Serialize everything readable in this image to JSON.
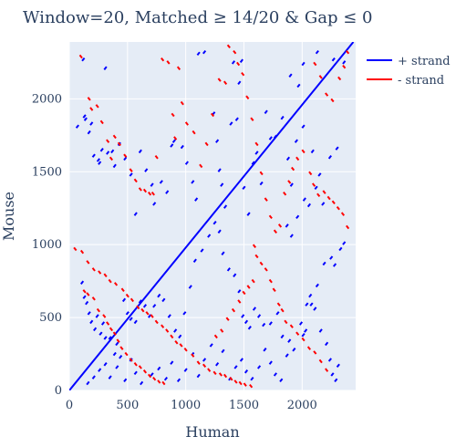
{
  "chart_data": {
    "type": "scatter",
    "title": "Window=20, Matched ≥ 14/20 & Gap ≤ 0",
    "xlabel": "Human",
    "ylabel": "Mouse",
    "xlim": [
      0,
      2460
    ],
    "ylim": [
      0,
      2390
    ],
    "xticks": [
      0,
      500,
      1000,
      1500,
      2000
    ],
    "yticks": [
      0,
      500,
      1000,
      1500,
      2000
    ],
    "grid": true,
    "legend_position": "top-right",
    "diagonal": {
      "from": [
        0,
        0
      ],
      "to": [
        2440,
        2390
      ],
      "color": "#0000ff"
    },
    "segment_length": 20,
    "series": [
      {
        "name": "+ strand",
        "color": "#0000ff",
        "points": [
          [
            60,
            1800
          ],
          [
            110,
            2260
          ],
          [
            130,
            1850
          ],
          [
            180,
            1820
          ],
          [
            300,
            2200
          ],
          [
            250,
            1550
          ],
          [
            320,
            1620
          ],
          [
            360,
            1630
          ],
          [
            380,
            1530
          ],
          [
            120,
            1870
          ],
          [
            160,
            1760
          ],
          [
            200,
            1600
          ],
          [
            240,
            1570
          ],
          [
            270,
            1640
          ],
          [
            420,
            1680
          ],
          [
            470,
            1580
          ],
          [
            520,
            1470
          ],
          [
            560,
            1200
          ],
          [
            600,
            1630
          ],
          [
            650,
            1500
          ],
          [
            700,
            1400
          ],
          [
            720,
            1270
          ],
          [
            780,
            1420
          ],
          [
            830,
            1350
          ],
          [
            870,
            1670
          ],
          [
            890,
            1700
          ],
          [
            960,
            1660
          ],
          [
            1000,
            1550
          ],
          [
            1050,
            1420
          ],
          [
            1080,
            1300
          ],
          [
            1100,
            2300
          ],
          [
            1150,
            2310
          ],
          [
            1230,
            1890
          ],
          [
            1260,
            1700
          ],
          [
            1280,
            1500
          ],
          [
            1300,
            1400
          ],
          [
            1330,
            1250
          ],
          [
            1380,
            1820
          ],
          [
            1400,
            2240
          ],
          [
            1430,
            1850
          ],
          [
            1450,
            2100
          ],
          [
            1470,
            2250
          ],
          [
            1490,
            1380
          ],
          [
            1530,
            1200
          ],
          [
            1570,
            1550
          ],
          [
            1600,
            1620
          ],
          [
            1640,
            1410
          ],
          [
            1680,
            1900
          ],
          [
            1720,
            1720
          ],
          [
            1760,
            1730
          ],
          [
            1820,
            1860
          ],
          [
            1870,
            1580
          ],
          [
            1900,
            1400
          ],
          [
            1940,
            1700
          ],
          [
            2000,
            1800
          ],
          [
            2080,
            1630
          ],
          [
            2140,
            1470
          ],
          [
            2170,
            1270
          ],
          [
            2230,
            1590
          ],
          [
            2290,
            1650
          ],
          [
            2350,
            2240
          ],
          [
            2260,
            2260
          ],
          [
            2120,
            2310
          ],
          [
            2000,
            2230
          ],
          [
            1960,
            2080
          ],
          [
            1890,
            2150
          ],
          [
            100,
            730
          ],
          [
            120,
            630
          ],
          [
            140,
            590
          ],
          [
            160,
            520
          ],
          [
            180,
            460
          ],
          [
            210,
            410
          ],
          [
            230,
            500
          ],
          [
            260,
            380
          ],
          [
            280,
            450
          ],
          [
            300,
            350
          ],
          [
            340,
            350
          ],
          [
            380,
            240
          ],
          [
            400,
            310
          ],
          [
            430,
            220
          ],
          [
            460,
            610
          ],
          [
            490,
            520
          ],
          [
            520,
            480
          ],
          [
            560,
            460
          ],
          [
            600,
            600
          ],
          [
            640,
            570
          ],
          [
            680,
            500
          ],
          [
            720,
            570
          ],
          [
            760,
            640
          ],
          [
            800,
            610
          ],
          [
            850,
            500
          ],
          [
            900,
            400
          ],
          [
            940,
            360
          ],
          [
            980,
            520
          ],
          [
            1030,
            700
          ],
          [
            1070,
            880
          ],
          [
            1130,
            950
          ],
          [
            1190,
            1050
          ],
          [
            1240,
            1140
          ],
          [
            1280,
            1080
          ],
          [
            1310,
            930
          ],
          [
            1360,
            820
          ],
          [
            1410,
            780
          ],
          [
            1450,
            670
          ],
          [
            1480,
            500
          ],
          [
            1510,
            460
          ],
          [
            1540,
            420
          ],
          [
            1580,
            550
          ],
          [
            1620,
            500
          ],
          [
            1660,
            440
          ],
          [
            1720,
            450
          ],
          [
            1780,
            520
          ],
          [
            1820,
            360
          ],
          [
            1880,
            330
          ],
          [
            1920,
            270
          ],
          [
            1980,
            450
          ],
          [
            2030,
            580
          ],
          [
            2060,
            640
          ],
          [
            2100,
            550
          ],
          [
            2150,
            400
          ],
          [
            2200,
            310
          ],
          [
            2230,
            200
          ],
          [
            2250,
            100
          ],
          [
            2280,
            60
          ],
          [
            2300,
            160
          ],
          [
            150,
            40
          ],
          [
            200,
            80
          ],
          [
            250,
            130
          ],
          [
            300,
            170
          ],
          [
            340,
            80
          ],
          [
            400,
            150
          ],
          [
            470,
            60
          ],
          [
            520,
            200
          ],
          [
            560,
            110
          ],
          [
            610,
            40
          ],
          [
            700,
            100
          ],
          [
            760,
            140
          ],
          [
            820,
            70
          ],
          [
            870,
            180
          ],
          [
            930,
            60
          ],
          [
            990,
            130
          ],
          [
            1050,
            240
          ],
          [
            1100,
            90
          ],
          [
            1150,
            200
          ],
          [
            1210,
            300
          ],
          [
            1260,
            170
          ],
          [
            1310,
            260
          ],
          [
            1370,
            70
          ],
          [
            1420,
            150
          ],
          [
            1470,
            200
          ],
          [
            1510,
            120
          ],
          [
            1560,
            70
          ],
          [
            1620,
            150
          ],
          [
            1670,
            270
          ],
          [
            1720,
            180
          ],
          [
            1760,
            100
          ],
          [
            1810,
            60
          ],
          [
            1860,
            230
          ],
          [
            2000,
            370
          ],
          [
            2020,
            400
          ],
          [
            2070,
            580
          ],
          [
            2120,
            710
          ],
          [
            2180,
            860
          ],
          [
            2240,
            900
          ],
          [
            2270,
            850
          ],
          [
            2320,
            960
          ],
          [
            2350,
            1000
          ],
          [
            1860,
            1120
          ],
          [
            1900,
            1050
          ],
          [
            1950,
            1180
          ],
          [
            2010,
            1300
          ],
          [
            2050,
            1260
          ],
          [
            2110,
            1380
          ]
        ]
      },
      {
        "name": "- strand",
        "color": "#ff0000",
        "points": [
          [
            90,
            2300
          ],
          [
            160,
            2010
          ],
          [
            180,
            1940
          ],
          [
            230,
            1960
          ],
          [
            270,
            1850
          ],
          [
            320,
            1720
          ],
          [
            350,
            1600
          ],
          [
            380,
            1750
          ],
          [
            420,
            1700
          ],
          [
            470,
            1620
          ],
          [
            520,
            1520
          ],
          [
            560,
            1450
          ],
          [
            600,
            1390
          ],
          [
            640,
            1380
          ],
          [
            680,
            1360
          ],
          [
            710,
            1360
          ],
          [
            740,
            1610
          ],
          [
            790,
            2280
          ],
          [
            840,
            2260
          ],
          [
            880,
            1900
          ],
          [
            900,
            1740
          ],
          [
            930,
            2220
          ],
          [
            960,
            1980
          ],
          [
            1000,
            1840
          ],
          [
            1060,
            1780
          ],
          [
            1120,
            1550
          ],
          [
            1170,
            1700
          ],
          [
            1220,
            1900
          ],
          [
            1280,
            2140
          ],
          [
            1330,
            2120
          ],
          [
            1360,
            2370
          ],
          [
            1410,
            2330
          ],
          [
            1440,
            2250
          ],
          [
            1480,
            2180
          ],
          [
            1520,
            2020
          ],
          [
            1560,
            1870
          ],
          [
            1600,
            1700
          ],
          [
            1640,
            1500
          ],
          [
            1680,
            1320
          ],
          [
            1720,
            1200
          ],
          [
            1760,
            1100
          ],
          [
            1800,
            1140
          ],
          [
            1840,
            1360
          ],
          [
            1880,
            1440
          ],
          [
            1910,
            1530
          ],
          [
            1950,
            1600
          ],
          [
            2000,
            1650
          ],
          [
            2060,
            1500
          ],
          [
            2090,
            1420
          ],
          [
            2130,
            1350
          ],
          [
            2180,
            1370
          ],
          [
            2220,
            1330
          ],
          [
            2260,
            1300
          ],
          [
            2300,
            1260
          ],
          [
            2340,
            1220
          ],
          [
            2380,
            1130
          ],
          [
            2100,
            2250
          ],
          [
            2150,
            2160
          ],
          [
            2200,
            2040
          ],
          [
            2250,
            2000
          ],
          [
            2310,
            2150
          ],
          [
            2350,
            2230
          ],
          [
            2380,
            2330
          ],
          [
            40,
            980
          ],
          [
            100,
            960
          ],
          [
            150,
            890
          ],
          [
            200,
            840
          ],
          [
            250,
            820
          ],
          [
            300,
            800
          ],
          [
            340,
            760
          ],
          [
            390,
            740
          ],
          [
            450,
            700
          ],
          [
            490,
            660
          ],
          [
            530,
            630
          ],
          [
            580,
            580
          ],
          [
            620,
            560
          ],
          [
            660,
            540
          ],
          [
            700,
            520
          ],
          [
            740,
            480
          ],
          [
            790,
            450
          ],
          [
            830,
            420
          ],
          [
            870,
            380
          ],
          [
            910,
            340
          ],
          [
            950,
            320
          ],
          [
            990,
            290
          ],
          [
            1050,
            250
          ],
          [
            1100,
            200
          ],
          [
            1150,
            180
          ],
          [
            1190,
            150
          ],
          [
            1240,
            130
          ],
          [
            1290,
            120
          ],
          [
            1330,
            110
          ],
          [
            1380,
            90
          ],
          [
            1420,
            70
          ],
          [
            1460,
            60
          ],
          [
            1500,
            50
          ],
          [
            1550,
            40
          ],
          [
            1580,
            1000
          ],
          [
            1600,
            930
          ],
          [
            1640,
            880
          ],
          [
            1680,
            840
          ],
          [
            1720,
            760
          ],
          [
            1750,
            700
          ],
          [
            1790,
            600
          ],
          [
            1820,
            560
          ],
          [
            1850,
            480
          ],
          [
            1900,
            450
          ],
          [
            1950,
            400
          ],
          [
            2000,
            360
          ],
          [
            2050,
            300
          ],
          [
            2100,
            270
          ],
          [
            2150,
            210
          ],
          [
            2200,
            150
          ],
          [
            120,
            690
          ],
          [
            150,
            670
          ],
          [
            200,
            640
          ],
          [
            240,
            560
          ],
          [
            290,
            520
          ],
          [
            320,
            470
          ],
          [
            350,
            430
          ],
          [
            380,
            400
          ],
          [
            410,
            350
          ],
          [
            440,
            300
          ],
          [
            480,
            260
          ],
          [
            520,
            220
          ],
          [
            560,
            190
          ],
          [
            600,
            170
          ],
          [
            640,
            140
          ],
          [
            680,
            110
          ],
          [
            720,
            90
          ],
          [
            760,
            70
          ],
          [
            800,
            60
          ],
          [
            1250,
            380
          ],
          [
            1300,
            420
          ],
          [
            1350,
            500
          ],
          [
            1400,
            560
          ],
          [
            1450,
            620
          ],
          [
            1490,
            680
          ],
          [
            1530,
            720
          ],
          [
            1570,
            760
          ]
        ]
      }
    ]
  }
}
